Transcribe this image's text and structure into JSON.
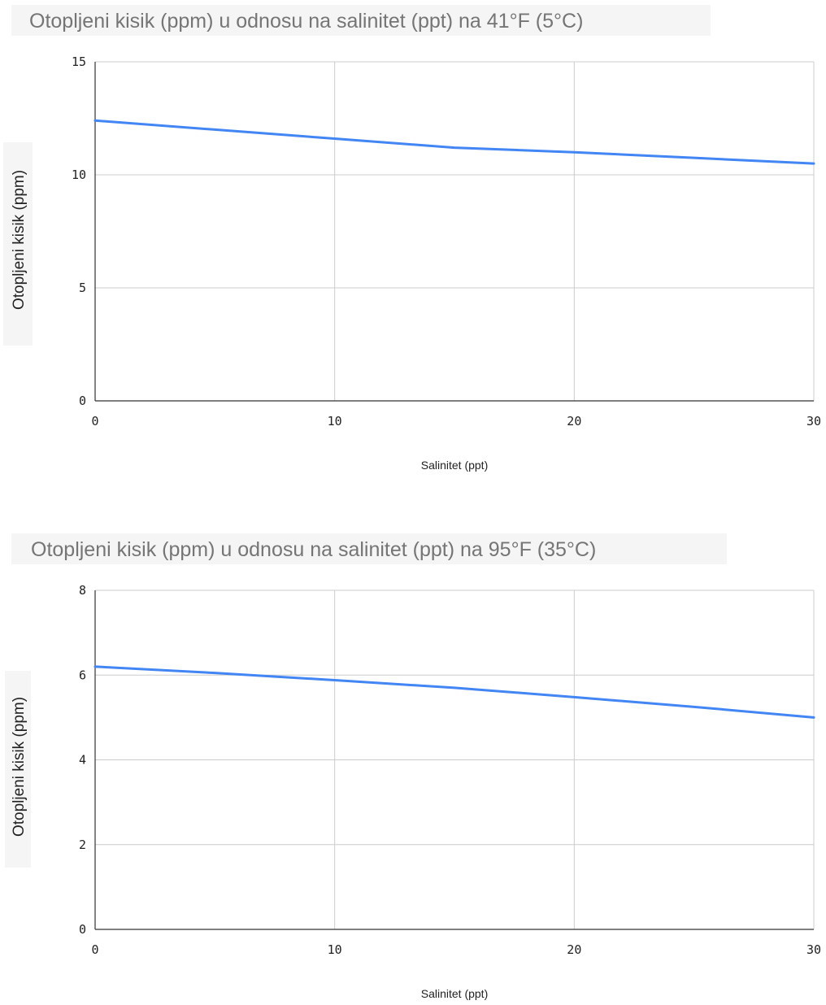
{
  "chart_data": [
    {
      "type": "line",
      "title": "Otopljeni kisik (ppm) u odnosu na salinitet (ppt) na 41°F (5°C)",
      "xlabel": "Salinitet (ppt)",
      "ylabel": "Otopljeni kisik (ppm)",
      "xlim": [
        0,
        30
      ],
      "ylim": [
        0,
        15
      ],
      "xticks": [
        0,
        10,
        20,
        30
      ],
      "yticks": [
        0,
        5,
        10,
        15
      ],
      "grid": true,
      "series": [
        {
          "color": "#4285f4",
          "x": [
            0,
            5,
            10,
            15,
            20,
            25,
            30
          ],
          "y": [
            12.4,
            12.0,
            11.6,
            11.2,
            11.0,
            10.75,
            10.5
          ]
        }
      ]
    },
    {
      "type": "line",
      "title": "Otopljeni kisik (ppm) u odnosu na salinitet (ppt) na 95°F (35°C)",
      "xlabel": "Salinitet (ppt)",
      "ylabel": "Otopljeni kisik (ppm)",
      "xlim": [
        0,
        30
      ],
      "ylim": [
        0,
        8
      ],
      "xticks": [
        0,
        10,
        20,
        30
      ],
      "yticks": [
        0,
        2,
        4,
        6,
        8
      ],
      "grid": true,
      "series": [
        {
          "color": "#4285f4",
          "x": [
            0,
            5,
            10,
            15,
            20,
            25,
            30
          ],
          "y": [
            6.2,
            6.05,
            5.88,
            5.7,
            5.48,
            5.25,
            5.0
          ]
        }
      ]
    }
  ]
}
